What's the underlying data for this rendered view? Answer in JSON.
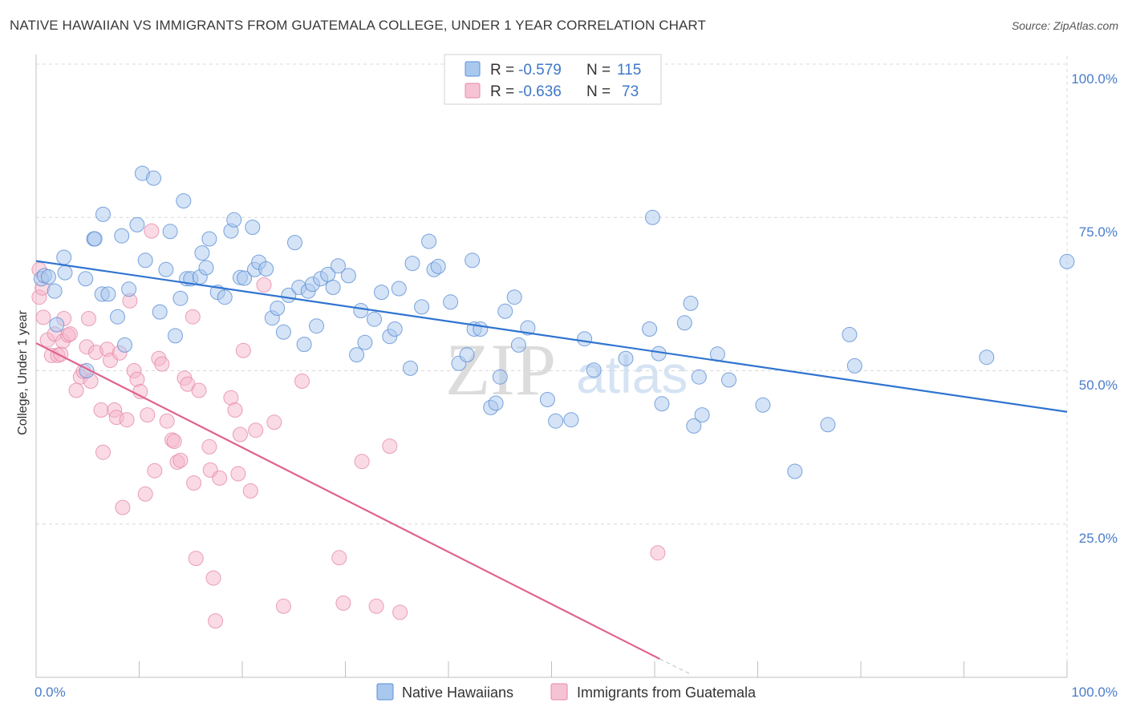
{
  "title": "NATIVE HAWAIIAN VS IMMIGRANTS FROM GUATEMALA COLLEGE, UNDER 1 YEAR CORRELATION CHART",
  "source": "Source: ZipAtlas.com",
  "watermark": {
    "zip": "ZIP",
    "atlas": "atlas"
  },
  "colors": {
    "blue_fill": "#a9c8ee",
    "blue_stroke": "#5b8fd6",
    "blue_line": "#2f74d0",
    "pink_fill": "#f5b6cb",
    "pink_stroke": "#e58aa8",
    "pink_line": "#e0628f",
    "grid": "#d9d9d9",
    "axis_label": "#4a7cc9"
  },
  "legend": {
    "rows": [
      {
        "r_label": "R =",
        "r_value": "-0.579",
        "n_label": "N =",
        "n_value": "115"
      },
      {
        "r_label": "R =",
        "r_value": "-0.636",
        "n_label": "N =",
        "n_value": "73"
      }
    ]
  },
  "chart_data": {
    "type": "scatter",
    "title": "NATIVE HAWAIIAN VS IMMIGRANTS FROM GUATEMALA COLLEGE, UNDER 1 YEAR CORRELATION CHART",
    "xlabel": "",
    "ylabel": "College, Under 1 year",
    "xlim": [
      0,
      100
    ],
    "ylim": [
      0,
      100
    ],
    "x_tick_labels": [
      "0.0%",
      "100.0%"
    ],
    "y_tick_labels": [
      "25.0%",
      "50.0%",
      "75.0%",
      "100.0%"
    ],
    "y_ticks": [
      25,
      50,
      75,
      100
    ],
    "legend_position": "bottom-center",
    "series": [
      {
        "name": "Native Hawaiians",
        "color": "#a9c8ee",
        "r": -0.579,
        "n": 115,
        "trend": {
          "x": [
            0,
            100
          ],
          "y": [
            67.9,
            43.3
          ],
          "style": "solid"
        },
        "points": [
          [
            0.5,
            65
          ],
          [
            0.8,
            65.5
          ],
          [
            1.2,
            65.3
          ],
          [
            1.8,
            63
          ],
          [
            2,
            57.5
          ],
          [
            2.7,
            68.5
          ],
          [
            2.8,
            66
          ],
          [
            4.8,
            65
          ],
          [
            4.9,
            50
          ],
          [
            5.6,
            71.5
          ],
          [
            6.4,
            62.5
          ],
          [
            6.5,
            75.5
          ],
          [
            7,
            62.5
          ],
          [
            7.9,
            58.8
          ],
          [
            8.3,
            72
          ],
          [
            8.6,
            54.2
          ],
          [
            9,
            63.3
          ],
          [
            9.8,
            73.8
          ],
          [
            10.3,
            82.2
          ],
          [
            10.6,
            68
          ],
          [
            11.4,
            81.4
          ],
          [
            12,
            59.6
          ],
          [
            12.6,
            66.5
          ],
          [
            13,
            72.7
          ],
          [
            13.5,
            55.7
          ],
          [
            14,
            61.8
          ],
          [
            14.3,
            77.7
          ],
          [
            14.6,
            65
          ],
          [
            15,
            65
          ],
          [
            15.9,
            65.3
          ],
          [
            16.1,
            69.2
          ],
          [
            16.5,
            66.8
          ],
          [
            16.8,
            71.5
          ],
          [
            17.6,
            62.8
          ],
          [
            18.3,
            62
          ],
          [
            18.9,
            72.8
          ],
          [
            19.2,
            74.6
          ],
          [
            19.8,
            65.2
          ],
          [
            20.2,
            65.1
          ],
          [
            21,
            73.4
          ],
          [
            21.2,
            66.5
          ],
          [
            21.6,
            67.7
          ],
          [
            22.3,
            66.6
          ],
          [
            22.9,
            58.6
          ],
          [
            23.4,
            60.2
          ],
          [
            24,
            56.3
          ],
          [
            24.5,
            62.3
          ],
          [
            25.1,
            70.9
          ],
          [
            25.5,
            63.6
          ],
          [
            26,
            54.3
          ],
          [
            26.4,
            63
          ],
          [
            26.8,
            64.1
          ],
          [
            27.2,
            57.3
          ],
          [
            27.6,
            65
          ],
          [
            28.3,
            65.7
          ],
          [
            28.8,
            63.6
          ],
          [
            29.3,
            67.1
          ],
          [
            30.3,
            65.5
          ],
          [
            31.1,
            52.6
          ],
          [
            31.5,
            59.8
          ],
          [
            31.9,
            54.6
          ],
          [
            32.8,
            58.4
          ],
          [
            33.5,
            62.8
          ],
          [
            34.3,
            55.6
          ],
          [
            34.8,
            56.8
          ],
          [
            35.2,
            63.4
          ],
          [
            36.3,
            50.4
          ],
          [
            36.5,
            67.5
          ],
          [
            37.4,
            60.4
          ],
          [
            38.1,
            71.1
          ],
          [
            38.6,
            66.5
          ],
          [
            39,
            67
          ],
          [
            40.2,
            61.2
          ],
          [
            41,
            51.2
          ],
          [
            41.8,
            52.6
          ],
          [
            42.3,
            68
          ],
          [
            42.5,
            56.8
          ],
          [
            43.1,
            56.8
          ],
          [
            44.1,
            44
          ],
          [
            44.6,
            44.7
          ],
          [
            45,
            49
          ],
          [
            45.5,
            59.7
          ],
          [
            46.4,
            62
          ],
          [
            46.8,
            54.2
          ],
          [
            47.7,
            57
          ],
          [
            49.6,
            45.3
          ],
          [
            50.4,
            41.8
          ],
          [
            51.9,
            42
          ],
          [
            53.2,
            55.2
          ],
          [
            54.1,
            50.1
          ],
          [
            57.2,
            52
          ],
          [
            59.5,
            56.8
          ],
          [
            59.8,
            75
          ],
          [
            60.4,
            52.8
          ],
          [
            60.7,
            44.6
          ],
          [
            62.9,
            57.8
          ],
          [
            63.5,
            61
          ],
          [
            63.8,
            41
          ],
          [
            64.3,
            49
          ],
          [
            64.6,
            42.8
          ],
          [
            66.1,
            52.7
          ],
          [
            67.2,
            48.5
          ],
          [
            70.5,
            44.4
          ],
          [
            73.6,
            33.6
          ],
          [
            76.8,
            41.2
          ],
          [
            78.9,
            55.9
          ],
          [
            79.4,
            50.8
          ],
          [
            92.2,
            52.2
          ],
          [
            100,
            67.8
          ],
          [
            5.7,
            71.5
          ]
        ]
      },
      {
        "name": "Immigrants from Guatemala",
        "color": "#f5b6cb",
        "r": -0.636,
        "n": 73,
        "trend": {
          "x": [
            0,
            60.5
          ],
          "y": [
            54.5,
            3
          ],
          "style": "solid",
          "dashed_extension_to": [
            63.5,
            0.5
          ]
        },
        "points": [
          [
            0.3,
            66.5
          ],
          [
            0.3,
            62
          ],
          [
            0.7,
            58.7
          ],
          [
            1.1,
            55
          ],
          [
            1.5,
            52.5
          ],
          [
            1.8,
            56
          ],
          [
            2.1,
            52.5
          ],
          [
            2.4,
            52.7
          ],
          [
            2.6,
            54.8
          ],
          [
            2.7,
            58.5
          ],
          [
            3.1,
            55.8
          ],
          [
            3.3,
            56
          ],
          [
            3.9,
            46.8
          ],
          [
            4.3,
            49
          ],
          [
            4.6,
            49.9
          ],
          [
            4.9,
            53.9
          ],
          [
            5.1,
            58.5
          ],
          [
            5.3,
            48.3
          ],
          [
            5.8,
            53
          ],
          [
            6.3,
            43.6
          ],
          [
            6.5,
            36.7
          ],
          [
            6.9,
            53.5
          ],
          [
            7.2,
            51.7
          ],
          [
            7.6,
            43.6
          ],
          [
            7.8,
            42.4
          ],
          [
            8.1,
            52.9
          ],
          [
            8.4,
            27.7
          ],
          [
            8.8,
            42
          ],
          [
            9.1,
            61.4
          ],
          [
            9.5,
            50
          ],
          [
            9.8,
            48.6
          ],
          [
            10.1,
            46.6
          ],
          [
            10.6,
            29.9
          ],
          [
            10.8,
            42.8
          ],
          [
            11.2,
            72.8
          ],
          [
            11.5,
            33.7
          ],
          [
            11.9,
            52
          ],
          [
            12.2,
            51.1
          ],
          [
            12.7,
            41.8
          ],
          [
            13.2,
            38.7
          ],
          [
            13.4,
            38.5
          ],
          [
            13.7,
            35.1
          ],
          [
            14,
            35.4
          ],
          [
            14.4,
            48.8
          ],
          [
            14.7,
            47.8
          ],
          [
            15.2,
            58.8
          ],
          [
            15.3,
            31.7
          ],
          [
            15.5,
            19.4
          ],
          [
            15.8,
            46.8
          ],
          [
            16.8,
            37.6
          ],
          [
            16.9,
            33.8
          ],
          [
            17.2,
            16.2
          ],
          [
            17.4,
            9.2
          ],
          [
            17.8,
            32.5
          ],
          [
            18.9,
            45.6
          ],
          [
            19.3,
            43.6
          ],
          [
            19.6,
            33.2
          ],
          [
            19.8,
            39.6
          ],
          [
            20.1,
            53.3
          ],
          [
            20.8,
            30.4
          ],
          [
            21.3,
            40.3
          ],
          [
            22.1,
            64
          ],
          [
            23.1,
            41.6
          ],
          [
            24,
            11.6
          ],
          [
            25.8,
            48.3
          ],
          [
            29.4,
            19.5
          ],
          [
            29.8,
            12.1
          ],
          [
            31.6,
            35.2
          ],
          [
            33,
            11.6
          ],
          [
            34.3,
            37.7
          ],
          [
            35.3,
            10.6
          ],
          [
            60.3,
            20.3
          ],
          [
            0.6,
            63.5
          ]
        ]
      }
    ]
  },
  "bottom_legend": {
    "items": [
      "Native Hawaiians",
      "Immigrants from Guatemala"
    ]
  }
}
